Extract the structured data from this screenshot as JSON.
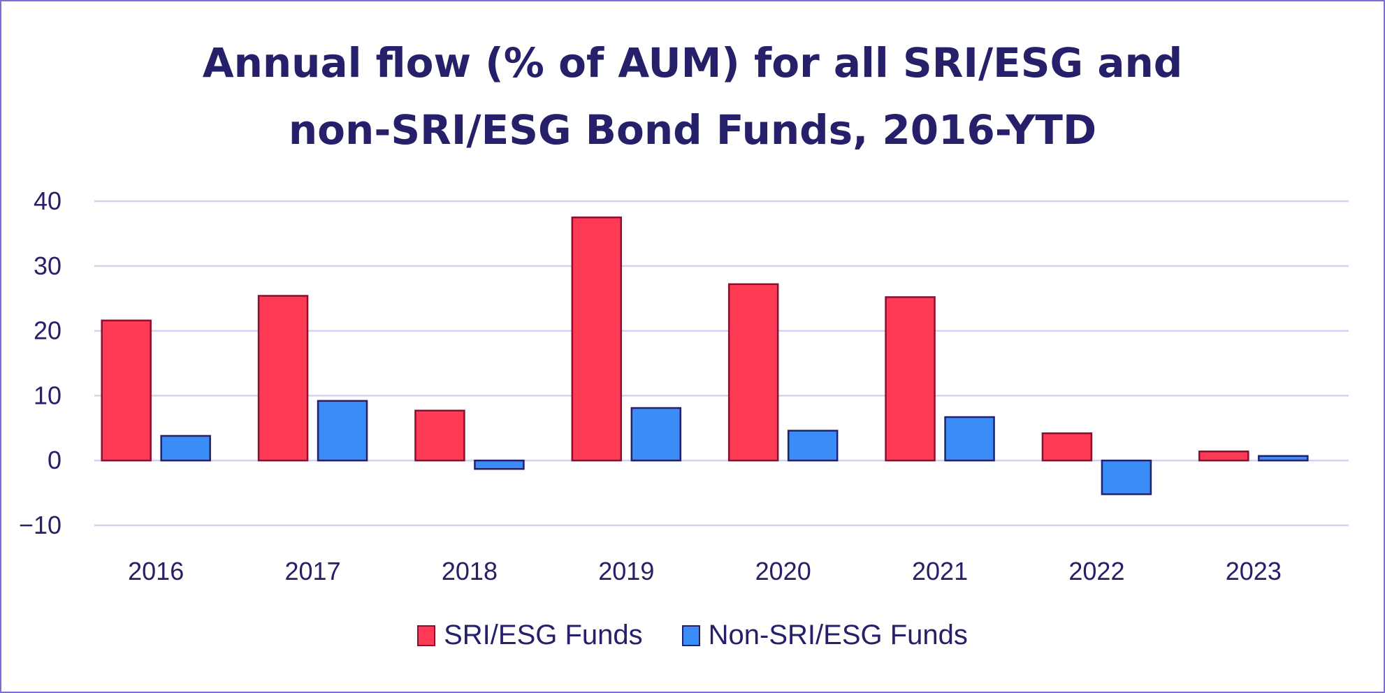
{
  "chart_data": {
    "type": "bar",
    "title_lines": [
      "Annual flow (% of AUM) for all SRI/ESG and",
      "non-SRI/ESG Bond Funds, 2016-YTD"
    ],
    "categories": [
      "2016",
      "2017",
      "2018",
      "2019",
      "2020",
      "2021",
      "2022",
      "2023"
    ],
    "series": [
      {
        "name": "SRI/ESG Funds",
        "color": "#ff3a55",
        "edge_color": "#8a1030",
        "values": [
          21.6,
          25.4,
          7.7,
          37.5,
          27.2,
          25.2,
          4.2,
          1.4
        ]
      },
      {
        "name": "Non-SRI/ESG Funds",
        "color": "#3a8cf7",
        "edge_color": "#26206a",
        "values": [
          3.8,
          9.2,
          -1.3,
          8.1,
          4.6,
          6.7,
          -5.2,
          0.7
        ]
      }
    ],
    "ylim": [
      -10,
      40
    ],
    "yticks": [
      40,
      30,
      20,
      10,
      0,
      -10
    ],
    "ytick_labels": [
      "40",
      "30",
      "20",
      "10",
      "0",
      "−10"
    ],
    "grid": true,
    "legend_position": "bottom-center",
    "gridline_color": "#d4d0f2"
  }
}
